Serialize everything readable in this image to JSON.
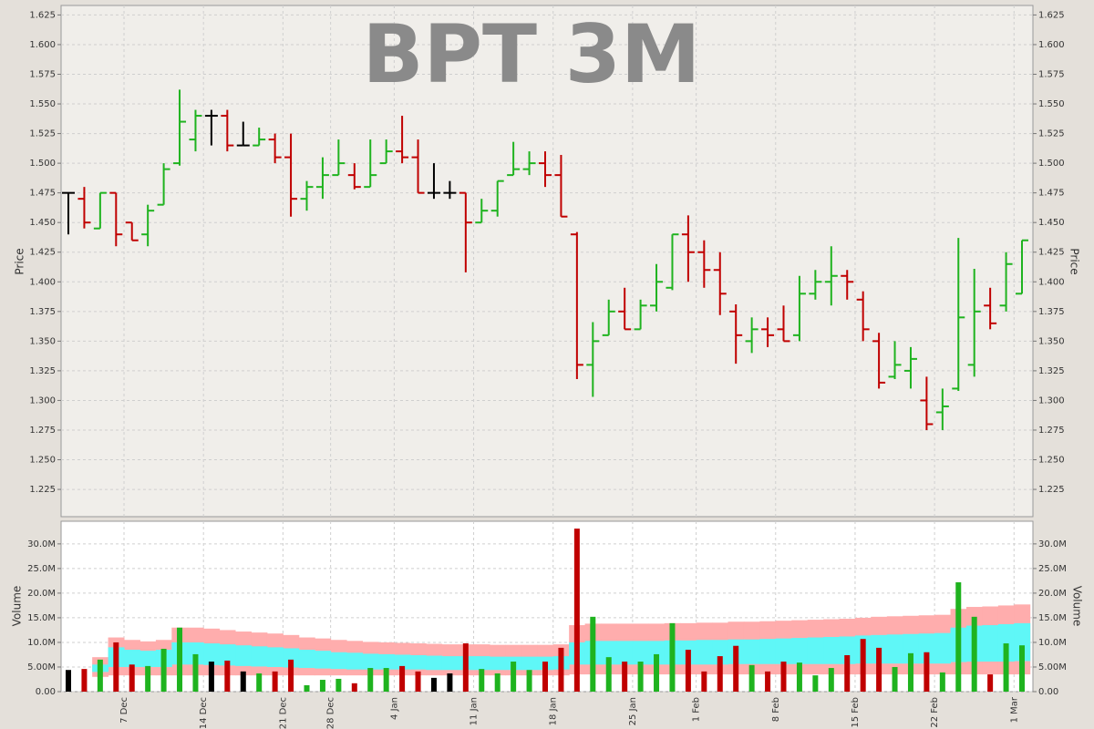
{
  "chart_data": [
    {
      "type": "ohlc",
      "title": "BPT 3M",
      "ylabel": "Price",
      "categories": [
        null,
        null,
        null,
        null,
        "7 Dec",
        null,
        null,
        null,
        null,
        "14 Dec",
        null,
        null,
        null,
        null,
        "21 Dec",
        null,
        null,
        "28 Dec",
        null,
        null,
        null,
        "4 Jan",
        null,
        null,
        null,
        null,
        "11 Jan",
        null,
        null,
        null,
        null,
        "18 Jan",
        null,
        null,
        null,
        null,
        "25 Jan",
        null,
        null,
        null,
        "1 Feb",
        null,
        null,
        null,
        null,
        "8 Feb",
        null,
        null,
        null,
        null,
        "15 Feb",
        null,
        null,
        null,
        null,
        "22 Feb",
        null,
        null,
        null,
        null,
        "1 Mar"
      ],
      "open": [
        1.475,
        1.47,
        1.445,
        1.475,
        1.45,
        1.44,
        1.465,
        1.5,
        1.52,
        1.54,
        1.54,
        1.515,
        1.515,
        1.52,
        1.505,
        1.47,
        1.48,
        1.49,
        1.49,
        1.48,
        1.5,
        1.51,
        1.505,
        1.475,
        1.475,
        1.475,
        1.45,
        1.46,
        1.49,
        1.495,
        1.5,
        1.49,
        1.44,
        1.33,
        1.355,
        1.375,
        1.36,
        1.38,
        1.395,
        1.44,
        1.425,
        1.41,
        1.375,
        1.35,
        1.36,
        1.36,
        1.355,
        1.39,
        1.4,
        1.405,
        1.385,
        1.35,
        1.32,
        1.325,
        1.3,
        1.29,
        1.31,
        1.33,
        1.38,
        1.38,
        1.39
      ],
      "high": [
        1.475,
        1.48,
        1.475,
        1.475,
        1.45,
        1.465,
        1.5,
        1.562,
        1.545,
        1.545,
        1.545,
        1.535,
        1.53,
        1.525,
        1.525,
        1.485,
        1.505,
        1.52,
        1.5,
        1.52,
        1.52,
        1.54,
        1.52,
        1.5,
        1.485,
        1.475,
        1.47,
        1.485,
        1.518,
        1.51,
        1.51,
        1.507,
        1.442,
        1.366,
        1.385,
        1.395,
        1.385,
        1.415,
        1.44,
        1.456,
        1.435,
        1.425,
        1.381,
        1.37,
        1.37,
        1.38,
        1.405,
        1.41,
        1.43,
        1.41,
        1.392,
        1.357,
        1.35,
        1.345,
        1.32,
        1.31,
        1.437,
        1.411,
        1.395,
        1.425,
        1.435
      ],
      "low": [
        1.44,
        1.445,
        1.445,
        1.43,
        1.435,
        1.43,
        1.465,
        1.498,
        1.51,
        1.515,
        1.51,
        1.515,
        1.515,
        1.5,
        1.455,
        1.46,
        1.47,
        1.49,
        1.478,
        1.48,
        1.5,
        1.5,
        1.475,
        1.47,
        1.47,
        1.408,
        1.45,
        1.455,
        1.49,
        1.49,
        1.48,
        1.455,
        1.318,
        1.303,
        1.355,
        1.36,
        1.36,
        1.375,
        1.393,
        1.4,
        1.395,
        1.372,
        1.331,
        1.34,
        1.345,
        1.35,
        1.35,
        1.385,
        1.38,
        1.385,
        1.35,
        1.31,
        1.318,
        1.31,
        1.275,
        1.275,
        1.308,
        1.32,
        1.36,
        1.375,
        1.39
      ],
      "close": [
        1.475,
        1.45,
        1.475,
        1.44,
        1.435,
        1.46,
        1.495,
        1.535,
        1.54,
        1.54,
        1.515,
        1.515,
        1.52,
        1.505,
        1.47,
        1.48,
        1.49,
        1.5,
        1.48,
        1.49,
        1.51,
        1.505,
        1.475,
        1.475,
        1.475,
        1.45,
        1.46,
        1.485,
        1.495,
        1.5,
        1.49,
        1.455,
        1.33,
        1.35,
        1.375,
        1.36,
        1.38,
        1.4,
        1.44,
        1.425,
        1.41,
        1.39,
        1.355,
        1.36,
        1.355,
        1.35,
        1.39,
        1.4,
        1.405,
        1.4,
        1.36,
        1.315,
        1.33,
        1.335,
        1.28,
        1.295,
        1.37,
        1.375,
        1.365,
        1.415,
        1.435
      ],
      "up_color": "#1fb31f",
      "down_color": "#c00000",
      "flat_color": "#000000",
      "ylim": [
        1.202,
        1.633
      ],
      "yticks": [
        1.225,
        {
          "value": 1.25,
          "label": "1.250"
        },
        1.275,
        {
          "value": 1.3,
          "label": "1.300"
        },
        1.325,
        {
          "value": 1.35,
          "label": "1.350"
        },
        1.375,
        {
          "value": 1.4,
          "label": "1.400"
        },
        1.425,
        {
          "value": 1.45,
          "label": "1.450"
        },
        1.475,
        {
          "value": 1.5,
          "label": "1.500"
        },
        1.525,
        {
          "value": 1.55,
          "label": "1.550"
        },
        1.575,
        {
          "value": 1.6,
          "label": "1.600"
        },
        1.625
      ],
      "grid": true
    },
    {
      "type": "bar",
      "ylabel": "Volume",
      "values": [
        4.4,
        4.6,
        6.5,
        10.0,
        5.5,
        5.2,
        8.7,
        13.0,
        7.6,
        6.1,
        6.3,
        4.1,
        3.7,
        4.1,
        6.5,
        1.3,
        2.4,
        2.6,
        1.7,
        4.8,
        4.8,
        5.2,
        4.1,
        2.8,
        3.7,
        9.8,
        4.6,
        3.7,
        6.1,
        4.4,
        6.1,
        8.9,
        33.1,
        15.2,
        7.0,
        6.1,
        6.1,
        7.6,
        13.9,
        8.5,
        4.1,
        7.2,
        9.3,
        5.4,
        4.1,
        6.1,
        5.9,
        3.3,
        4.8,
        7.4,
        10.7,
        8.9,
        5.0,
        7.8,
        8.0,
        3.9,
        22.2,
        15.2,
        3.5,
        9.8,
        9.4
      ],
      "bands": [
        {
          "color": "#ffadad",
          "lower": [
            null,
            null,
            3,
            3.3,
            3.3,
            3.3,
            3.3,
            3.3,
            3.3,
            3.3,
            3.3,
            3.3,
            3.3,
            3.3,
            3.3,
            3.3,
            3.3,
            3.3,
            3.3,
            3.3,
            3.3,
            3.3,
            3.3,
            3.3,
            3.3,
            3.3,
            3.3,
            3.3,
            3.3,
            3.3,
            3.3,
            3.3,
            3.5,
            3.5,
            3.5,
            3.5,
            3.5,
            3.5,
            3.5,
            3.5,
            3.5,
            3.5,
            3.5,
            3.5,
            3.5,
            3.5,
            3.5,
            3.5,
            3.5,
            3.5,
            3.5,
            3.5,
            3.5,
            3.5,
            3.5,
            3.5,
            3.5,
            3.5,
            3.5,
            3.5,
            3.5
          ],
          "upper": [
            null,
            null,
            7,
            11,
            10.5,
            10.2,
            10.5,
            13,
            13,
            12.8,
            12.5,
            12.2,
            12,
            11.8,
            11.5,
            11,
            10.8,
            10.5,
            10.3,
            10.1,
            10,
            9.9,
            9.8,
            9.7,
            9.6,
            9.6,
            9.6,
            9.5,
            9.5,
            9.5,
            9.5,
            9.6,
            13.5,
            13.8,
            13.8,
            13.8,
            13.8,
            13.8,
            13.9,
            13.9,
            14,
            14,
            14.2,
            14.2,
            14.3,
            14.4,
            14.5,
            14.6,
            14.7,
            14.8,
            15,
            15.2,
            15.3,
            15.4,
            15.5,
            15.6,
            16.8,
            17.2,
            17.3,
            17.5,
            17.7
          ]
        },
        {
          "color": "#5ff7f7",
          "lower": [
            null,
            null,
            4,
            5,
            5,
            5,
            5,
            5.5,
            5.5,
            5.4,
            5.3,
            5.2,
            5.1,
            5,
            4.9,
            4.8,
            4.7,
            4.6,
            4.5,
            4.5,
            4.5,
            4.5,
            4.5,
            4.4,
            4.4,
            4.4,
            4.4,
            4.4,
            4.4,
            4.4,
            4.4,
            4.5,
            5.5,
            5.5,
            5.5,
            5.5,
            5.5,
            5.5,
            5.5,
            5.5,
            5.5,
            5.5,
            5.6,
            5.6,
            5.6,
            5.6,
            5.6,
            5.6,
            5.6,
            5.6,
            5.7,
            5.7,
            5.7,
            5.7,
            5.7,
            5.7,
            6,
            6.1,
            6.1,
            6.1,
            6.2
          ],
          "upper": [
            null,
            null,
            5.5,
            9,
            8.5,
            8.3,
            8.5,
            10,
            10,
            9.8,
            9.6,
            9.4,
            9.2,
            9,
            8.8,
            8.5,
            8.3,
            8,
            7.9,
            7.7,
            7.6,
            7.5,
            7.4,
            7.3,
            7.2,
            7.2,
            7.2,
            7.1,
            7.1,
            7.1,
            7.1,
            7.2,
            10,
            10.3,
            10.3,
            10.3,
            10.3,
            10.3,
            10.4,
            10.4,
            10.5,
            10.5,
            10.6,
            10.6,
            10.7,
            10.8,
            10.9,
            11,
            11.1,
            11.2,
            11.4,
            11.5,
            11.6,
            11.7,
            11.8,
            11.9,
            13,
            13.4,
            13.5,
            13.7,
            13.9
          ]
        }
      ],
      "ylim": [
        0,
        34.6
      ],
      "yticks": [
        {
          "value": 0,
          "label": "0.00"
        },
        {
          "value": 5,
          "label": "5.00M"
        },
        {
          "value": 10,
          "label": "10.0M"
        },
        {
          "value": 15,
          "label": "15.0M"
        },
        {
          "value": 20,
          "label": "20.0M"
        },
        {
          "value": 25,
          "label": "25.0M"
        },
        {
          "value": 30,
          "label": "30.0M"
        }
      ],
      "grid": true
    }
  ]
}
